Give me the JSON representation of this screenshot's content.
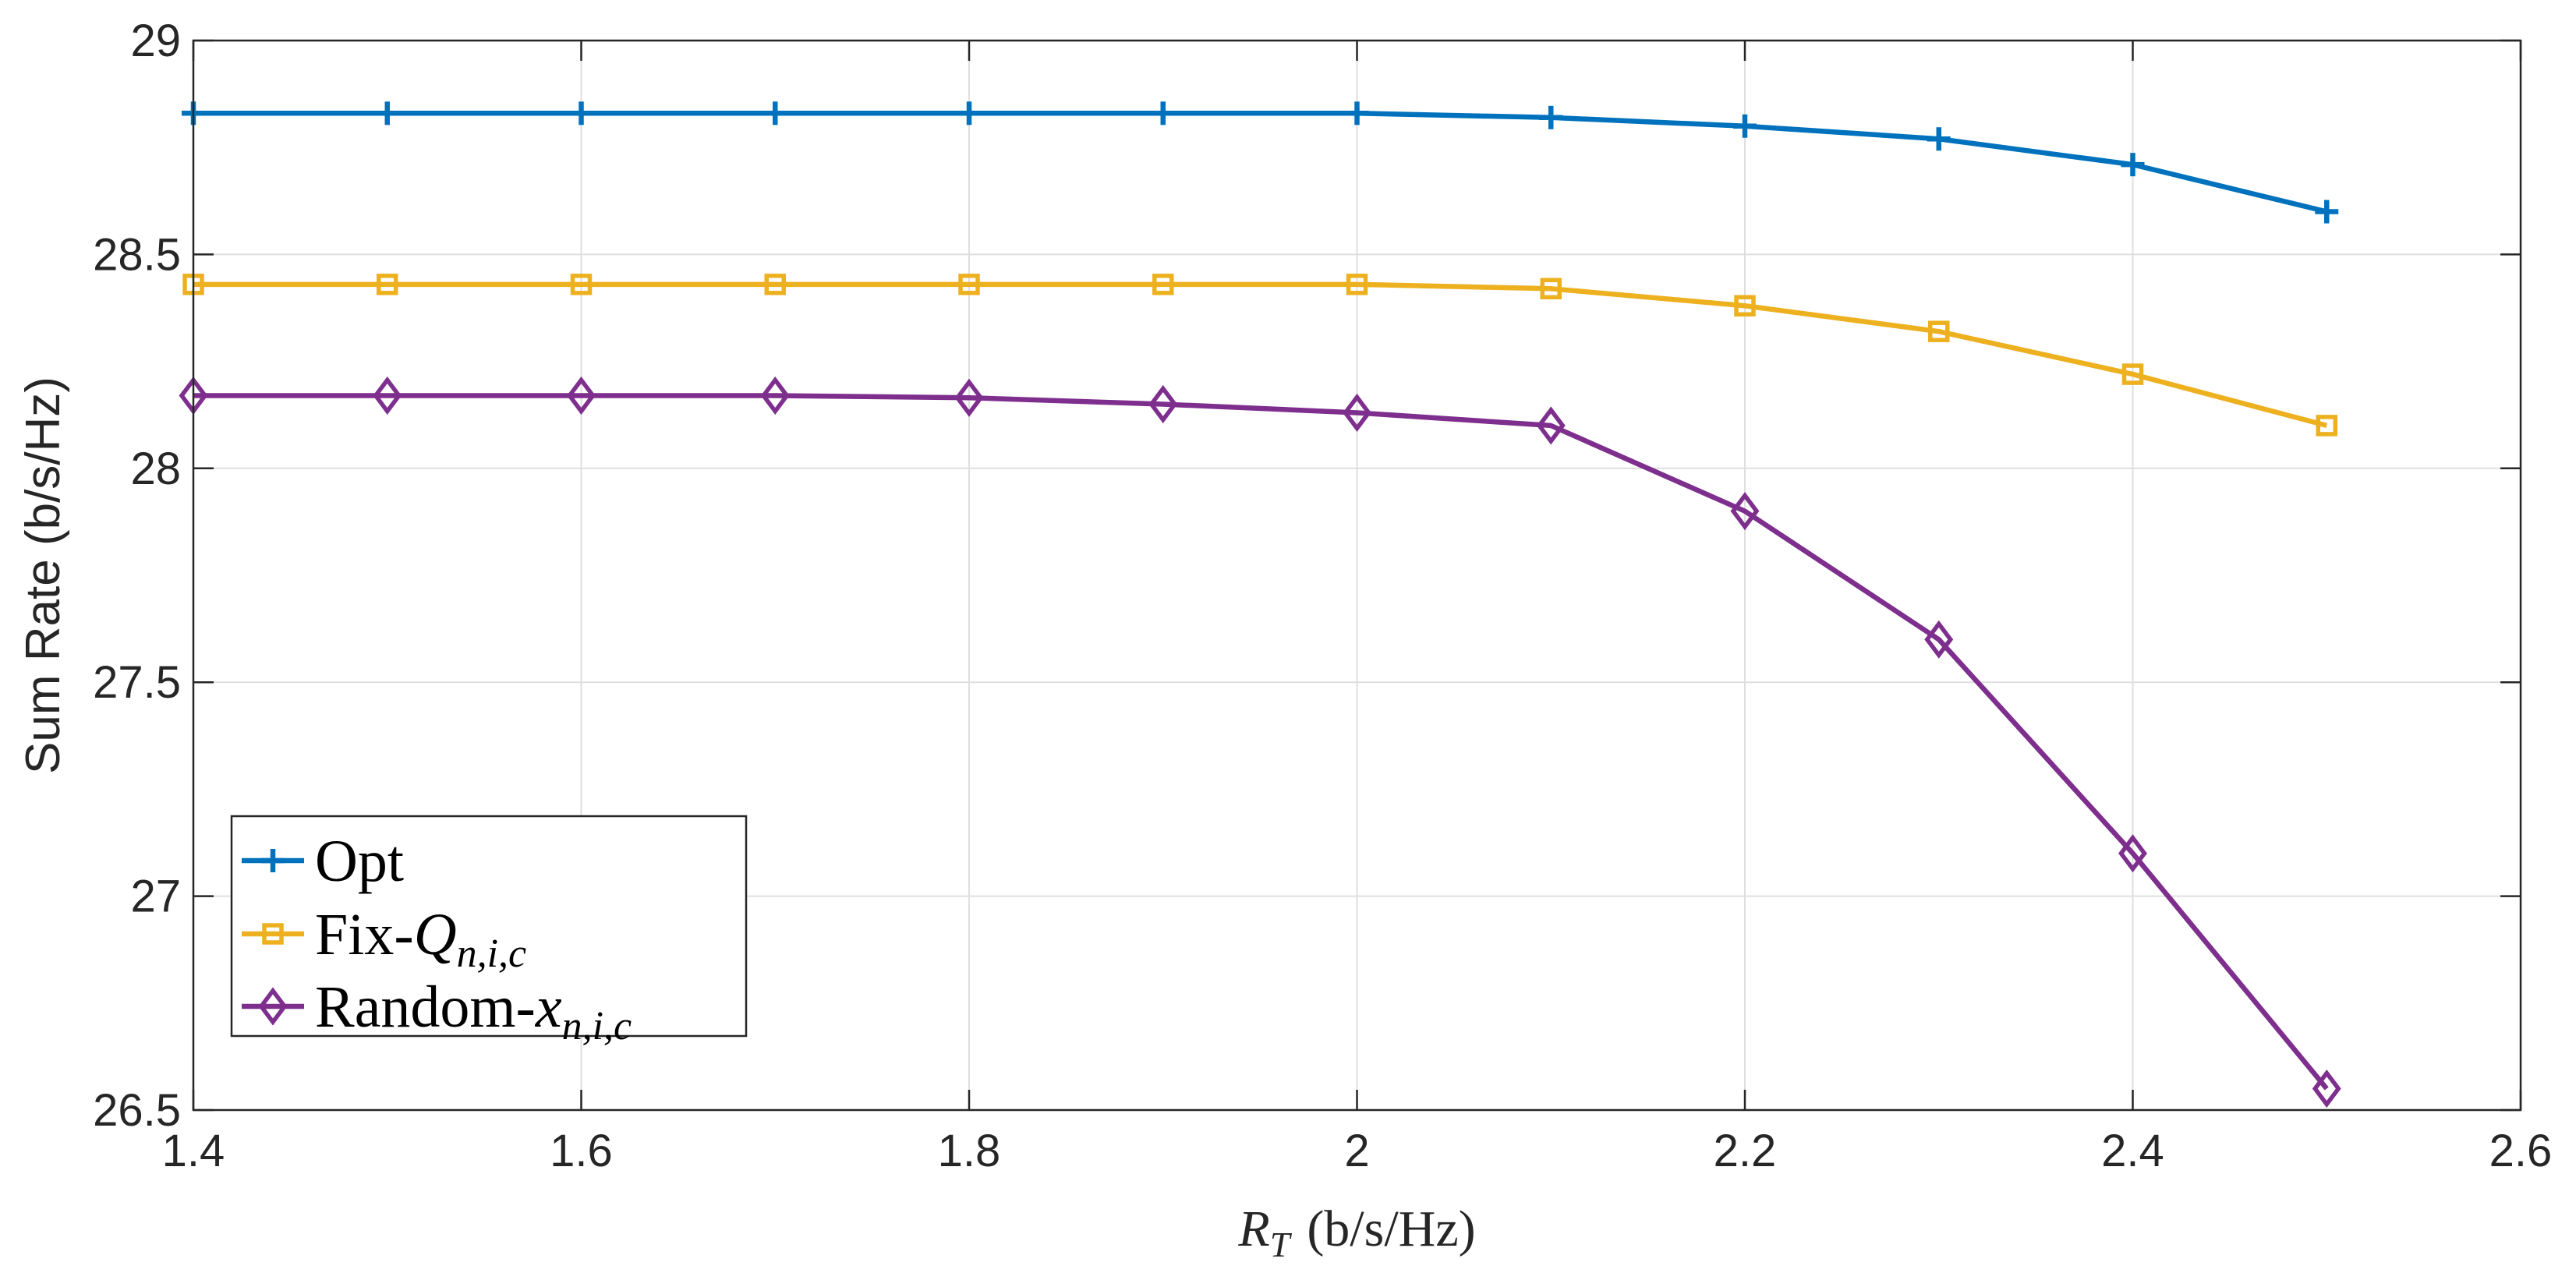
{
  "chart_data": {
    "type": "line",
    "title": "",
    "xlabel": {
      "var": "R",
      "sub": "T",
      "unit": "(b/s/Hz)"
    },
    "ylabel": "Sum Rate (b/s/Hz)",
    "xlim": [
      1.4,
      2.6
    ],
    "ylim": [
      26.5,
      29
    ],
    "grid": true,
    "xticks": [
      "1.4",
      "1.6",
      "1.8",
      "2",
      "2.2",
      "2.4",
      "2.6"
    ],
    "yticks": [
      "26.5",
      "27",
      "27.5",
      "28",
      "28.5",
      "29"
    ],
    "x": [
      1.4,
      1.5,
      1.6,
      1.7,
      1.8,
      1.9,
      2.0,
      2.1,
      2.2,
      2.3,
      2.4,
      2.5
    ],
    "series": [
      {
        "name": "Opt",
        "label": "Opt",
        "label_math": "",
        "label_sub": "",
        "color": "#0072BD",
        "marker": "plus",
        "values": [
          28.83,
          28.83,
          28.83,
          28.83,
          28.83,
          28.83,
          28.83,
          28.82,
          28.8,
          28.77,
          28.71,
          28.6
        ]
      },
      {
        "name": "Fix-Q_{n,i,c}",
        "label": "Fix-",
        "label_math": "Q",
        "label_sub": "n,i,c",
        "color": "#EDB120",
        "marker": "square",
        "values": [
          28.43,
          28.43,
          28.43,
          28.43,
          28.43,
          28.43,
          28.43,
          28.42,
          28.38,
          28.32,
          28.22,
          28.1
        ]
      },
      {
        "name": "Random-x_{n,i,c}",
        "label": "Random-",
        "label_math": "x",
        "label_sub": "n,i,c",
        "color": "#7E2F8E",
        "marker": "diamond",
        "values": [
          28.17,
          28.17,
          28.17,
          28.17,
          28.165,
          28.15,
          28.13,
          28.1,
          27.9,
          27.6,
          27.1,
          26.55
        ]
      }
    ],
    "legend_position": "bottom-left"
  }
}
